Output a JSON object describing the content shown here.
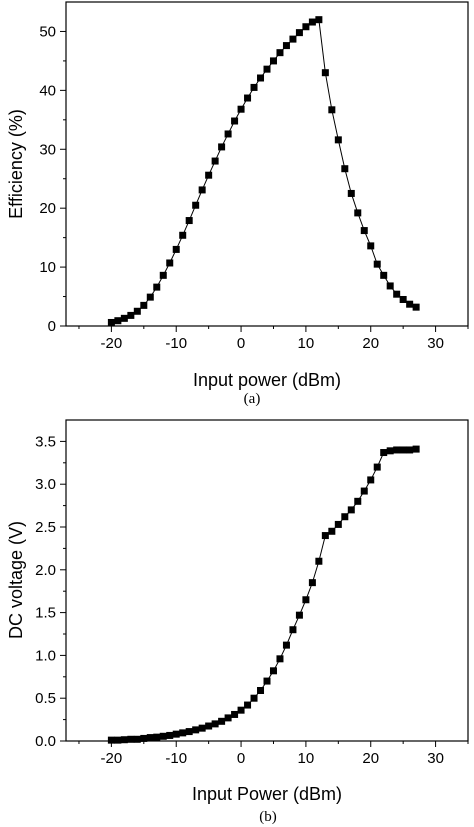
{
  "chart_data": [
    {
      "type": "line",
      "caption": "(a)",
      "xlabel": "Input power (dBm)",
      "ylabel": "Efficiency (%)",
      "xlim": [
        -27,
        35
      ],
      "ylim": [
        0,
        55
      ],
      "xticks": [
        -20,
        -10,
        0,
        10,
        20,
        30
      ],
      "yticks": [
        0,
        10,
        20,
        30,
        40,
        50
      ],
      "marker": "square",
      "series": [
        {
          "x": [
            -20,
            -19,
            -18,
            -17,
            -16,
            -15,
            -14,
            -13,
            -12,
            -11,
            -10,
            -9,
            -8,
            -7,
            -6,
            -5,
            -4,
            -3,
            -2,
            -1,
            0,
            1,
            2,
            3,
            4,
            5,
            6,
            7,
            8,
            9,
            10,
            11,
            12,
            13,
            14,
            15,
            16,
            17,
            18,
            19,
            20,
            21,
            22,
            23,
            24,
            25,
            26,
            27
          ],
          "y": [
            0.6,
            0.9,
            1.3,
            1.8,
            2.5,
            3.5,
            4.9,
            6.6,
            8.6,
            10.7,
            13.0,
            15.4,
            17.9,
            20.5,
            23.1,
            25.6,
            28.0,
            30.4,
            32.6,
            34.8,
            36.8,
            38.7,
            40.5,
            42.1,
            43.6,
            45.0,
            46.4,
            47.6,
            48.7,
            49.8,
            50.8,
            51.6,
            52.0,
            43.0,
            36.7,
            31.6,
            26.7,
            22.5,
            19.2,
            16.2,
            13.6,
            10.5,
            8.6,
            6.8,
            5.4,
            4.5,
            3.7,
            3.2
          ]
        }
      ]
    },
    {
      "type": "line",
      "caption": "(b)",
      "xlabel": "Input Power (dBm)",
      "ylabel": "DC voltage (V)",
      "xlim": [
        -27,
        35
      ],
      "ylim": [
        0,
        3.75
      ],
      "xticks": [
        -20,
        -10,
        0,
        10,
        20,
        30
      ],
      "yticks": [
        0,
        0.5,
        1.0,
        1.5,
        2.0,
        2.5,
        3.0,
        3.5
      ],
      "ytick_labels": [
        "0.0",
        "0.5",
        "1.0",
        "1.5",
        "2.0",
        "2.5",
        "3.0",
        "3.5"
      ],
      "marker": "square",
      "series": [
        {
          "x": [
            -20,
            -19,
            -18,
            -17,
            -16,
            -15,
            -14,
            -13,
            -12,
            -11,
            -10,
            -9,
            -8,
            -7,
            -6,
            -5,
            -4,
            -3,
            -2,
            -1,
            0,
            1,
            2,
            3,
            4,
            5,
            6,
            7,
            8,
            9,
            10,
            11,
            12,
            13,
            14,
            15,
            16,
            17,
            18,
            19,
            20,
            21,
            22,
            23,
            24,
            25,
            26,
            27
          ],
          "y": [
            0.01,
            0.01,
            0.015,
            0.02,
            0.02,
            0.03,
            0.04,
            0.045,
            0.055,
            0.065,
            0.08,
            0.095,
            0.11,
            0.13,
            0.15,
            0.175,
            0.2,
            0.23,
            0.27,
            0.31,
            0.36,
            0.42,
            0.5,
            0.59,
            0.7,
            0.82,
            0.96,
            1.12,
            1.3,
            1.47,
            1.65,
            1.85,
            2.1,
            2.4,
            2.45,
            2.53,
            2.62,
            2.7,
            2.8,
            2.92,
            3.05,
            3.2,
            3.37,
            3.39,
            3.4,
            3.4,
            3.4,
            3.41
          ]
        }
      ]
    }
  ]
}
